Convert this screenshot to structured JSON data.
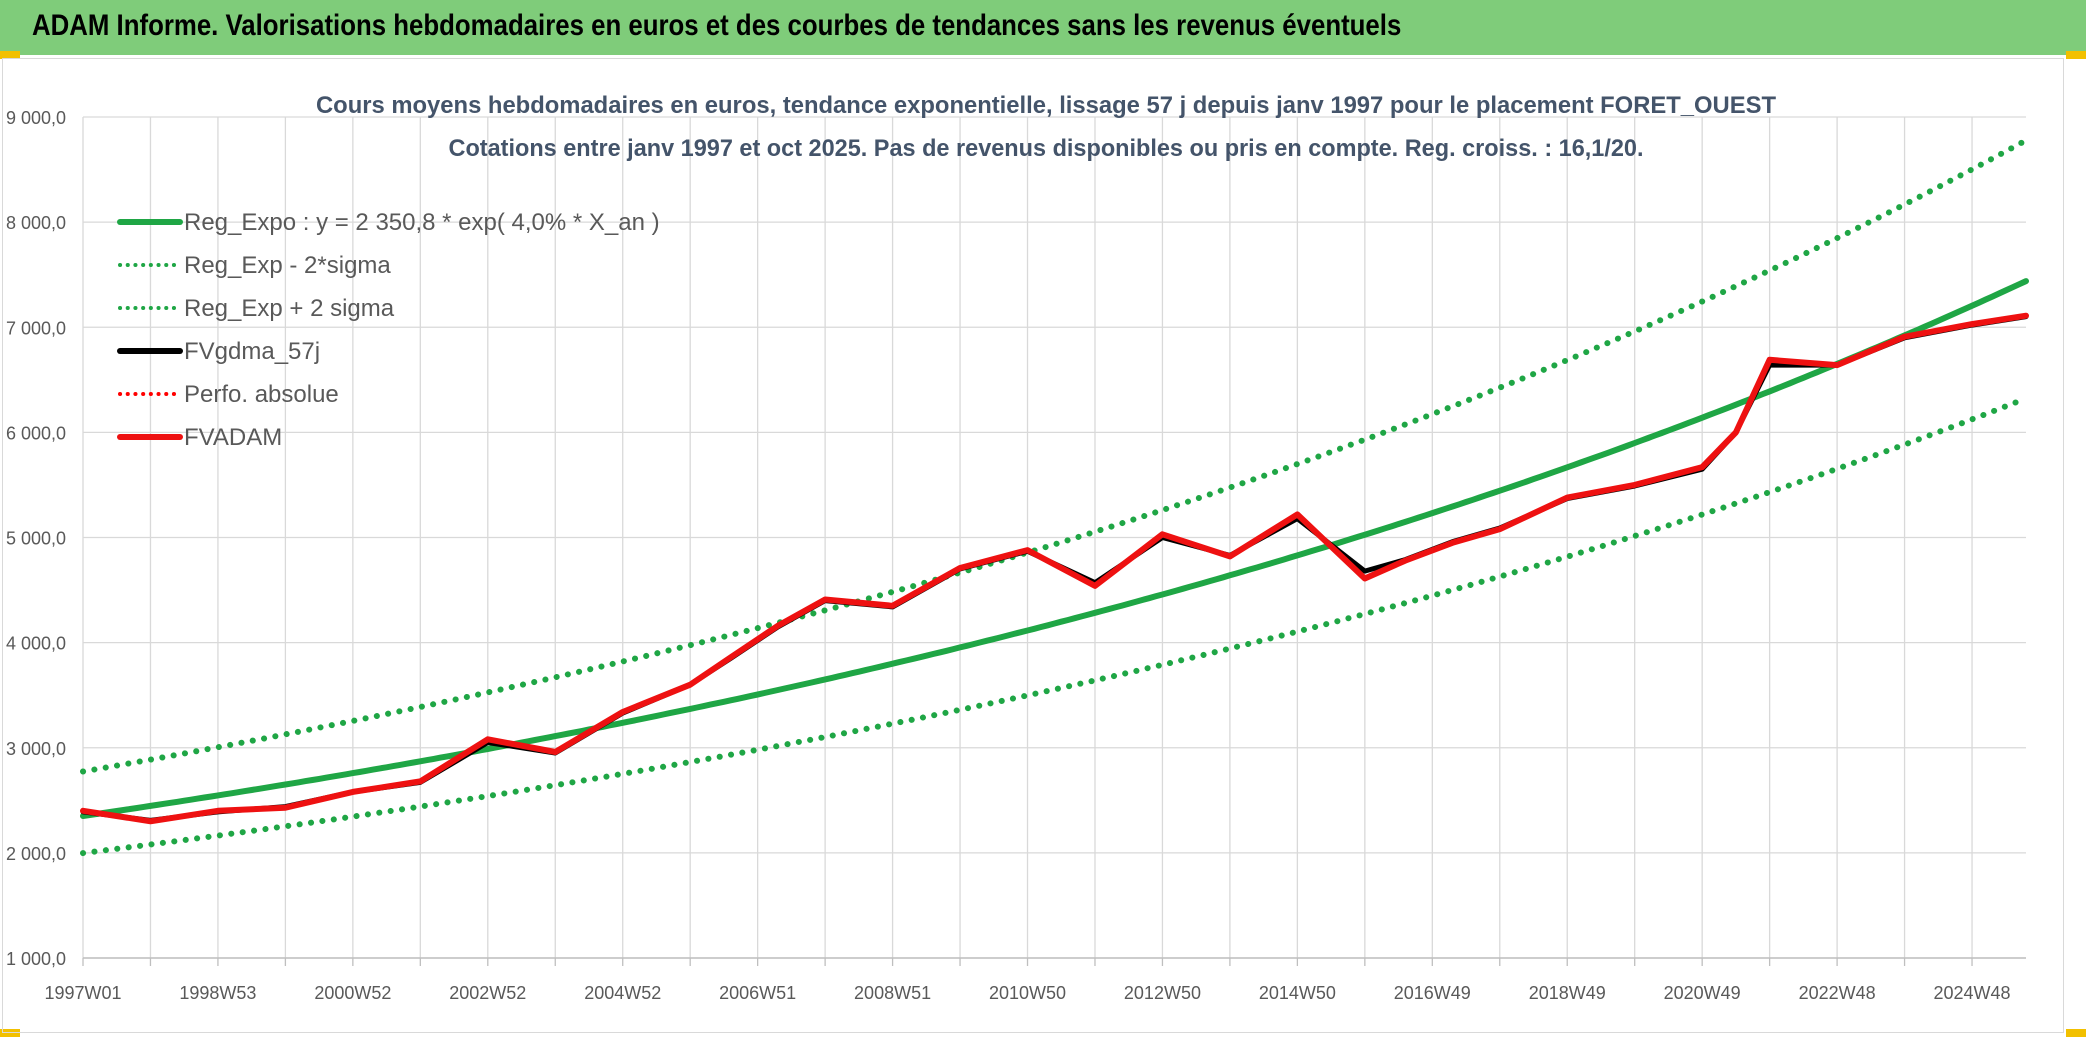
{
  "banner": {
    "title": "ADAM Informe. Valorisations hebdomadaires en euros et des courbes de tendances sans les revenus éventuels",
    "background": "#7fcc7a"
  },
  "chart_data": {
    "type": "line",
    "title": "Cours moyens hebdomadaires en euros, tendance exponentielle, lissage 57 j depuis janv 1997 pour le placement FORET_OUEST",
    "subtitle": "Cotations entre janv 1997 et oct 2025. Pas de revenus disponibles ou pris en compte. Reg. croiss. : 16,1/20.",
    "xlabel": "",
    "ylabel": "",
    "ylim": [
      1000,
      9000
    ],
    "yticks": [
      1000,
      2000,
      3000,
      4000,
      5000,
      6000,
      7000,
      8000,
      9000
    ],
    "ytick_labels": [
      "1 000,0",
      "2 000,0",
      "3 000,0",
      "4 000,0",
      "5 000,0",
      "6 000,0",
      "7 000,0",
      "8 000,0",
      "9 000,0"
    ],
    "xlim": [
      1997.0,
      2025.8
    ],
    "xticks": [
      1997.0,
      1999.0,
      2001.0,
      2003.0,
      2005.0,
      2007.0,
      2009.0,
      2011.0,
      2013.0,
      2015.0,
      2017.0,
      2019.0,
      2021.0,
      2023.0,
      2025.0
    ],
    "xtick_labels": [
      "1997W01",
      "1998W53",
      "2000W52",
      "2002W52",
      "2004W52",
      "2006W51",
      "2008W51",
      "2010W50",
      "2012W50",
      "2014W50",
      "2016W49",
      "2018W49",
      "2020W49",
      "2022W48",
      "2024W48"
    ],
    "grid": true,
    "legend_position": "top-left",
    "regression": {
      "a": 2350.8,
      "rate": 0.04,
      "start": 1997.0,
      "sigma_lower_factor": 0.85,
      "sigma_upper_factor": 1.18
    },
    "series": [
      {
        "name": "Reg_Expo : y = 2 350,8 * exp( 4,0% *  X_an )",
        "kind": "reg",
        "color": "#1fa645",
        "dash": "solid"
      },
      {
        "name": "Reg_Exp - 2*sigma",
        "kind": "reg_low",
        "color": "#1fa645",
        "dash": "dot"
      },
      {
        "name": "Reg_Exp + 2 sigma",
        "kind": "reg_high",
        "color": "#1fa645",
        "dash": "dot"
      },
      {
        "name": "FVgdma_57j",
        "kind": "data",
        "color": "#000000",
        "dash": "solid",
        "x": [
          1997.0,
          1998.0,
          1999.0,
          2000.0,
          2001.0,
          2002.0,
          2003.0,
          2004.0,
          2005.0,
          2006.0,
          2006.6,
          2007.3,
          2008.0,
          2009.0,
          2010.0,
          2011.0,
          2012.0,
          2013.0,
          2014.0,
          2015.0,
          2016.0,
          2016.6,
          2017.3,
          2018.0,
          2019.0,
          2020.0,
          2021.0,
          2021.5,
          2022.0,
          2023.0,
          2024.0,
          2025.0,
          2025.8
        ],
        "y": [
          2390,
          2310,
          2390,
          2440,
          2580,
          2670,
          3050,
          2950,
          3330,
          3600,
          3850,
          4150,
          4400,
          4340,
          4700,
          4870,
          4570,
          5000,
          4830,
          5180,
          4680,
          4790,
          4960,
          5090,
          5370,
          5490,
          5650,
          6000,
          6640,
          6640,
          6900,
          7020,
          7100
        ]
      },
      {
        "name": "Perfo. absolue",
        "kind": "hidden",
        "color": "#ff0000",
        "dash": "dot"
      },
      {
        "name": "FVADAM",
        "kind": "data",
        "color": "#ee1111",
        "dash": "solid",
        "x": [
          1997.0,
          1998.0,
          1999.0,
          2000.0,
          2001.0,
          2002.0,
          2003.0,
          2004.0,
          2005.0,
          2006.0,
          2006.6,
          2007.3,
          2008.0,
          2009.0,
          2010.0,
          2011.0,
          2012.0,
          2013.0,
          2014.0,
          2015.0,
          2016.0,
          2016.6,
          2017.3,
          2018.0,
          2019.0,
          2020.0,
          2021.0,
          2021.5,
          2022.0,
          2023.0,
          2024.0,
          2025.0,
          2025.8
        ],
        "y": [
          2400,
          2300,
          2400,
          2430,
          2580,
          2680,
          3080,
          2960,
          3340,
          3600,
          3860,
          4160,
          4410,
          4350,
          4710,
          4880,
          4540,
          5030,
          4820,
          5220,
          4610,
          4780,
          4950,
          5080,
          5380,
          5500,
          5670,
          6000,
          6690,
          6640,
          6910,
          7030,
          7110
        ]
      }
    ]
  }
}
